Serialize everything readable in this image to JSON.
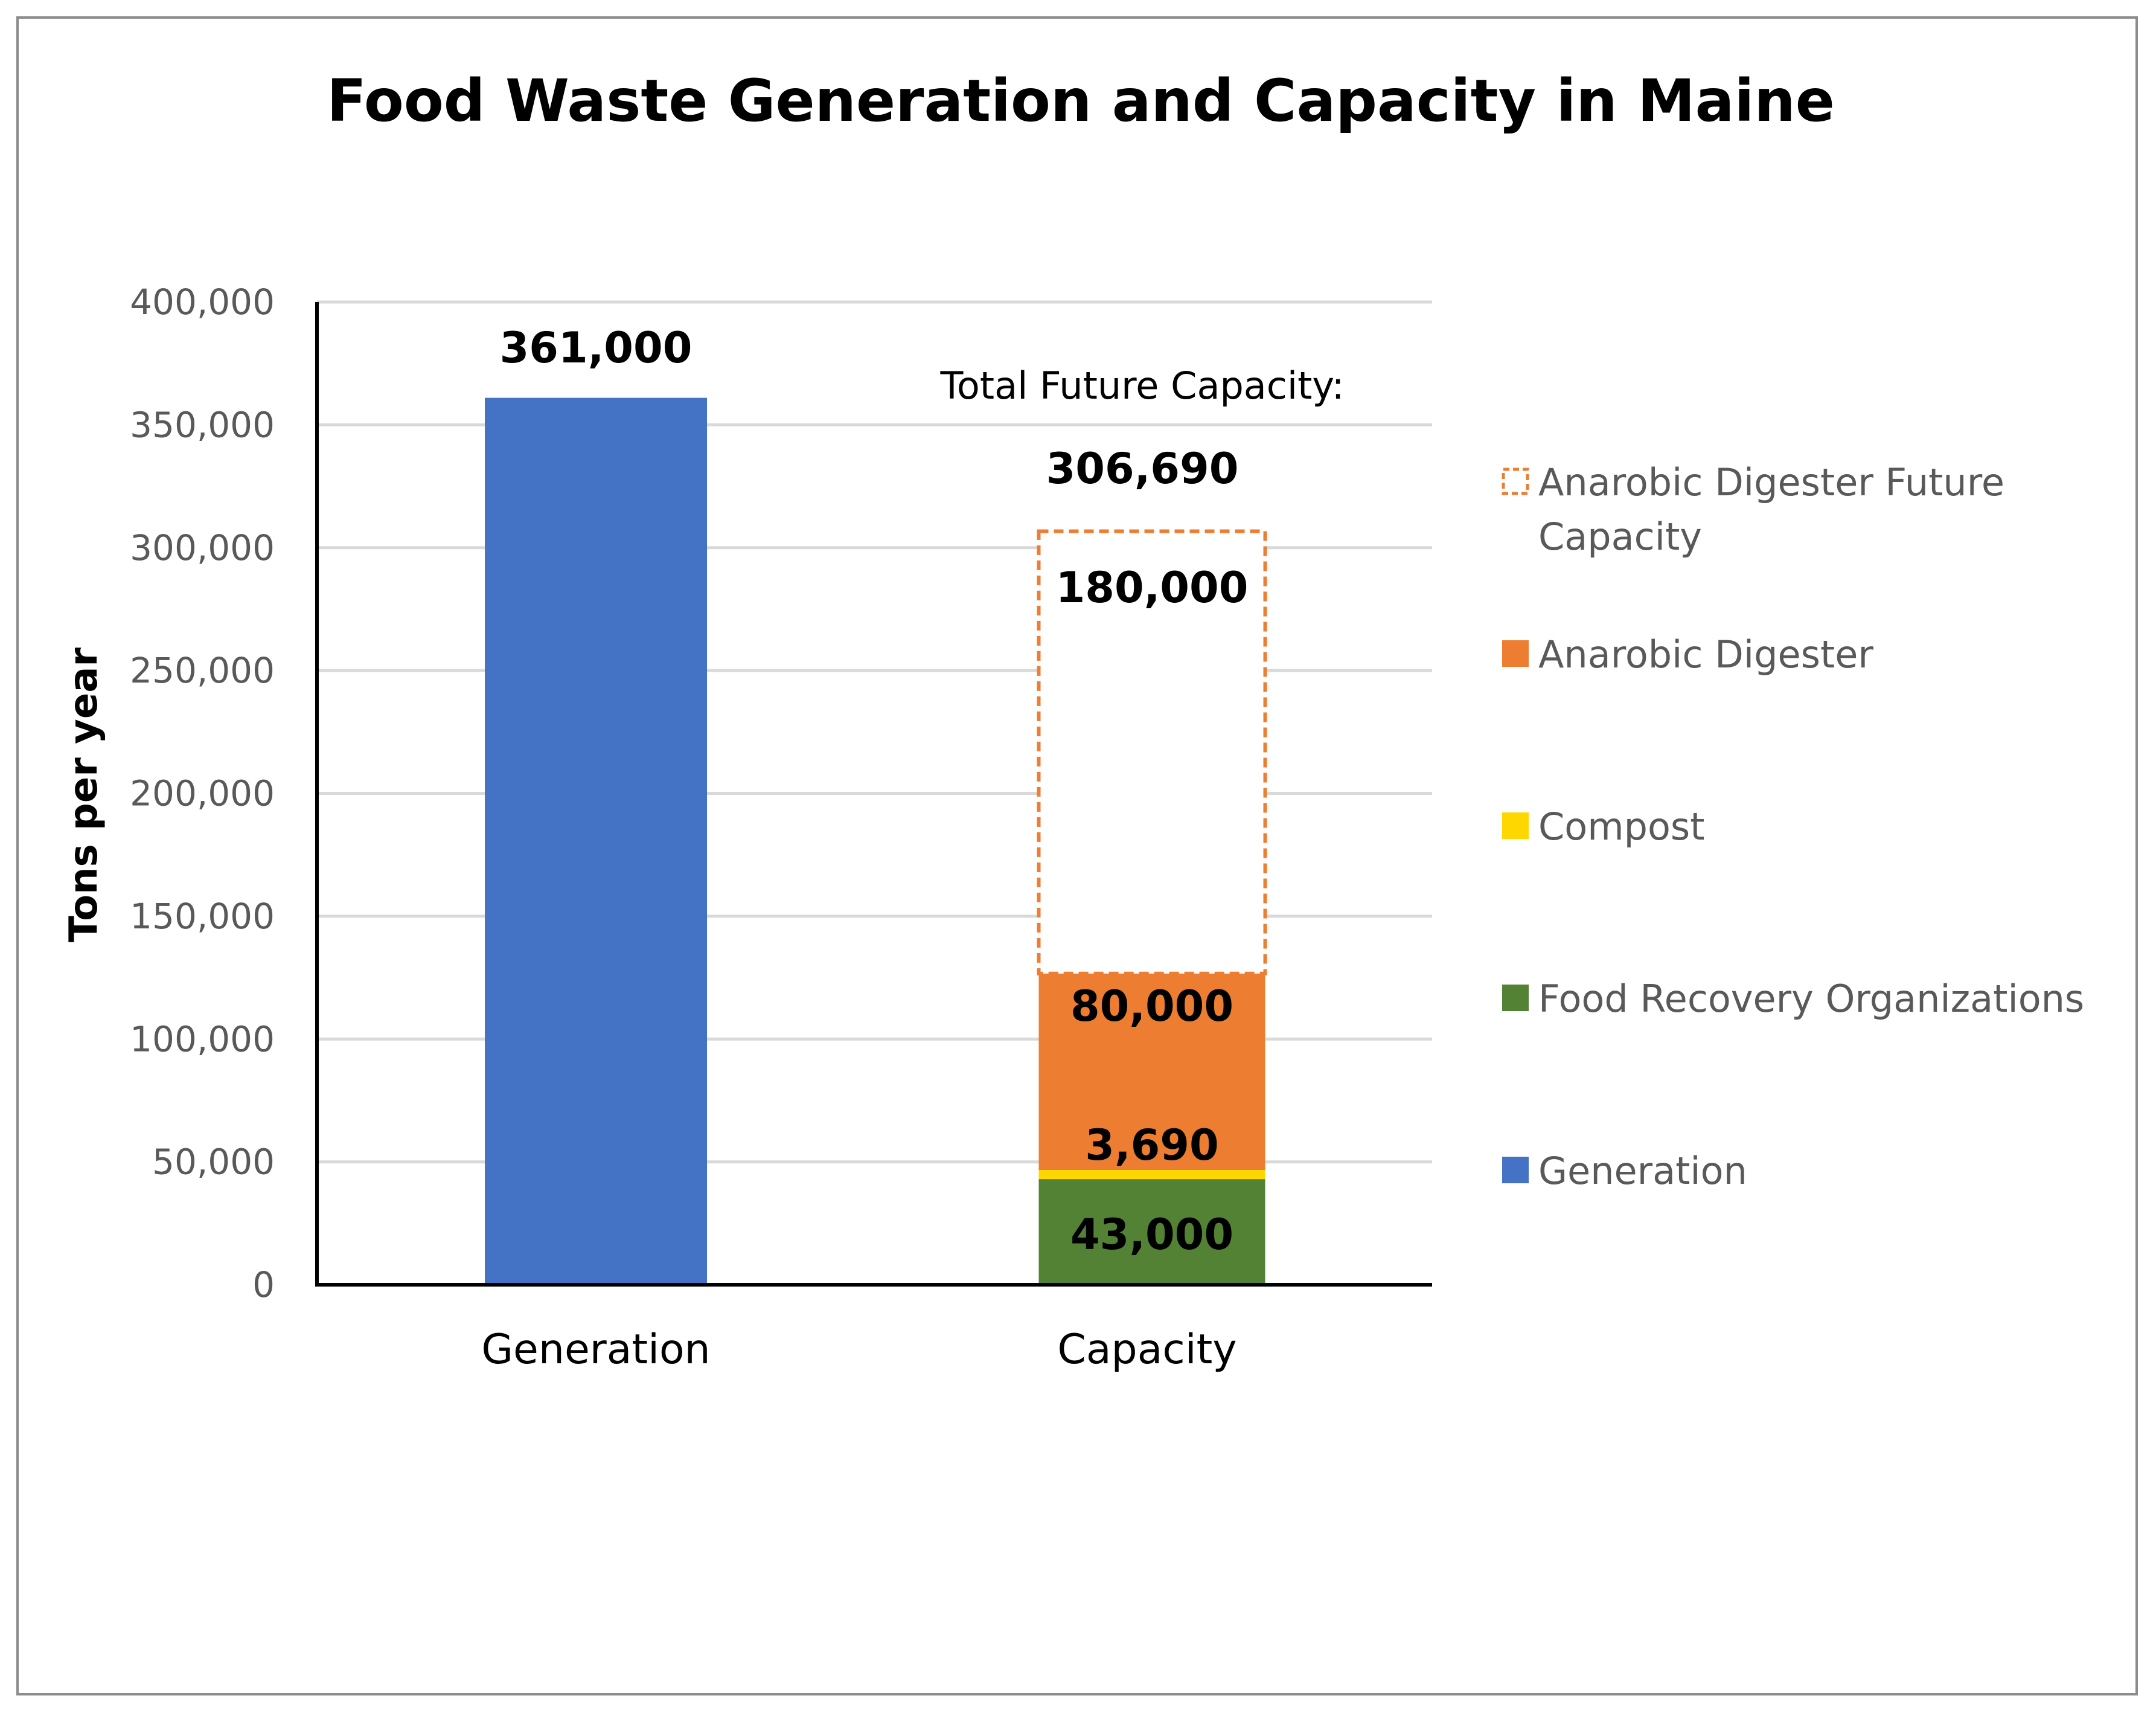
{
  "chart_data": {
    "type": "bar",
    "stacked": true,
    "title": "Food Waste Generation and Capacity in Maine",
    "xlabel": "",
    "ylabel": "Tons per year",
    "ylim": [
      0,
      400000
    ],
    "ytick_step": 50000,
    "ytick_labels": [
      "0",
      "50,000",
      "100,000",
      "150,000",
      "200,000",
      "250,000",
      "300,000",
      "350,000",
      "400,000"
    ],
    "grid": true,
    "categories": [
      "Generation",
      "Capacity"
    ],
    "series": [
      {
        "name": "Generation",
        "color": "#4472C4",
        "values": [
          361000,
          0
        ],
        "labels": [
          "361,000",
          ""
        ]
      },
      {
        "name": "Food Recovery Organizations",
        "color": "#548235",
        "values": [
          0,
          43000
        ],
        "labels": [
          "",
          "43,000"
        ]
      },
      {
        "name": "Compost",
        "color": "#FFD700",
        "values": [
          0,
          3690
        ],
        "labels": [
          "",
          "3,690"
        ]
      },
      {
        "name": "Anarobic Digester",
        "color": "#ED7D31",
        "values": [
          0,
          80000
        ],
        "labels": [
          "",
          "80,000"
        ]
      },
      {
        "name": "Anarobic Digester Future Capacity",
        "color": "#ED7D31",
        "dashed": true,
        "values": [
          0,
          180000
        ],
        "labels": [
          "",
          "180,000"
        ]
      }
    ],
    "annotation": {
      "text": "Total Future Capacity:",
      "total_label": "306,690",
      "total": 306690
    },
    "legend": {
      "position": "right",
      "entries": [
        {
          "line1": "Anarobic Digester Future",
          "line2": "Capacity",
          "color": "#ED7D31",
          "dashed": true
        },
        {
          "line1": "Anarobic Digester",
          "line2": "",
          "color": "#ED7D31",
          "dashed": false
        },
        {
          "line1": "Compost",
          "line2": "",
          "color": "#FFD700",
          "dashed": false
        },
        {
          "line1": "Food Recovery Organizations",
          "line2": "",
          "color": "#548235",
          "dashed": false
        },
        {
          "line1": "Generation",
          "line2": "",
          "color": "#4472C4",
          "dashed": false
        }
      ]
    }
  }
}
